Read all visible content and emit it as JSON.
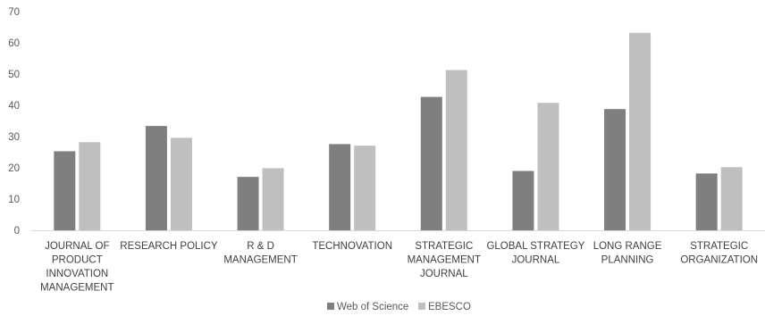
{
  "chart_data": {
    "type": "bar",
    "categories": [
      "JOURNAL OF PRODUCT INNOVATION MANAGEMENT",
      "RESEARCH POLICY",
      "R & D MANAGEMENT",
      "TECHNOVATION",
      "STRATEGIC MANAGEMENT JOURNAL",
      "GLOBAL STRATEGY JOURNAL",
      "LONG RANGE PLANNING",
      "STRATEGIC ORGANIZATION"
    ],
    "category_label_lines": [
      [
        "JOURNAL OF",
        "PRODUCT",
        "INNOVATION",
        "MANAGEMENT"
      ],
      [
        "RESEARCH POLICY"
      ],
      [
        "R & D",
        "MANAGEMENT"
      ],
      [
        "TECHNOVATION"
      ],
      [
        "STRATEGIC",
        "MANAGEMENT",
        "JOURNAL"
      ],
      [
        "GLOBAL STRATEGY",
        "JOURNAL"
      ],
      [
        "LONG RANGE",
        "PLANNING"
      ],
      [
        "STRATEGIC",
        "ORGANIZATION"
      ]
    ],
    "series": [
      {
        "name": "Web of Science",
        "color": "#7f7f7f",
        "values": [
          25.3,
          33.4,
          17.1,
          27.6,
          42.7,
          19.0,
          38.8,
          18.2
        ]
      },
      {
        "name": "EBESCO",
        "color": "#bfbfbf",
        "values": [
          28.2,
          29.6,
          19.9,
          27.1,
          51.3,
          40.8,
          63.2,
          20.2
        ]
      }
    ],
    "title": "",
    "xlabel": "",
    "ylabel": "",
    "ylim": [
      0,
      70
    ],
    "yticks": [
      0,
      10,
      20,
      30,
      40,
      50,
      60,
      70
    ],
    "grid": false,
    "legend_position": "bottom"
  }
}
